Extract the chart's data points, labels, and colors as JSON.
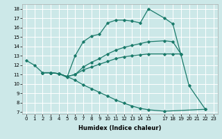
{
  "xlabel": "Humidex (Indice chaleur)",
  "bg_color": "#cce8e8",
  "line_color": "#1a7a6a",
  "grid_color": "#ffffff",
  "xlim": [
    -0.5,
    23.5
  ],
  "ylim": [
    6.8,
    18.5
  ],
  "xticks": [
    0,
    1,
    2,
    3,
    4,
    5,
    6,
    7,
    8,
    9,
    10,
    11,
    12,
    13,
    14,
    15,
    17,
    18,
    19,
    20,
    21,
    22,
    23
  ],
  "yticks": [
    7,
    8,
    9,
    10,
    11,
    12,
    13,
    14,
    15,
    16,
    17,
    18
  ],
  "line1_x": [
    0,
    1,
    2,
    3,
    4,
    5,
    6,
    7,
    8,
    9,
    10,
    11,
    12,
    13,
    14,
    15,
    17,
    18,
    20,
    22
  ],
  "line1_y": [
    12.5,
    12.0,
    11.2,
    11.2,
    11.1,
    10.7,
    13.0,
    14.5,
    15.1,
    15.3,
    16.5,
    16.8,
    16.8,
    16.7,
    16.5,
    18.0,
    17.0,
    16.4,
    9.8,
    7.3
  ],
  "line2_x": [
    2,
    3,
    4,
    5,
    6,
    7,
    8,
    9,
    10,
    11,
    12,
    13,
    14,
    15,
    17,
    18,
    19
  ],
  "line2_y": [
    11.2,
    11.2,
    11.1,
    10.8,
    11.0,
    11.8,
    12.3,
    12.7,
    13.2,
    13.6,
    13.9,
    14.1,
    14.3,
    14.5,
    14.6,
    14.5,
    13.2
  ],
  "line3_x": [
    2,
    3,
    4,
    5,
    6,
    7,
    8,
    9,
    10,
    11,
    12,
    13,
    14,
    15,
    17,
    18,
    19
  ],
  "line3_y": [
    11.2,
    11.2,
    11.1,
    10.8,
    11.0,
    11.5,
    11.8,
    12.1,
    12.4,
    12.7,
    12.9,
    13.0,
    13.1,
    13.2,
    13.2,
    13.2,
    13.2
  ],
  "line4_x": [
    2,
    3,
    4,
    5,
    6,
    7,
    8,
    9,
    10,
    11,
    12,
    13,
    14,
    15,
    17,
    22
  ],
  "line4_y": [
    11.2,
    11.2,
    11.1,
    10.8,
    10.4,
    9.9,
    9.5,
    9.1,
    8.7,
    8.3,
    7.95,
    7.65,
    7.4,
    7.25,
    7.1,
    7.3
  ],
  "tick_fontsize": 5,
  "xlabel_fontsize": 6
}
